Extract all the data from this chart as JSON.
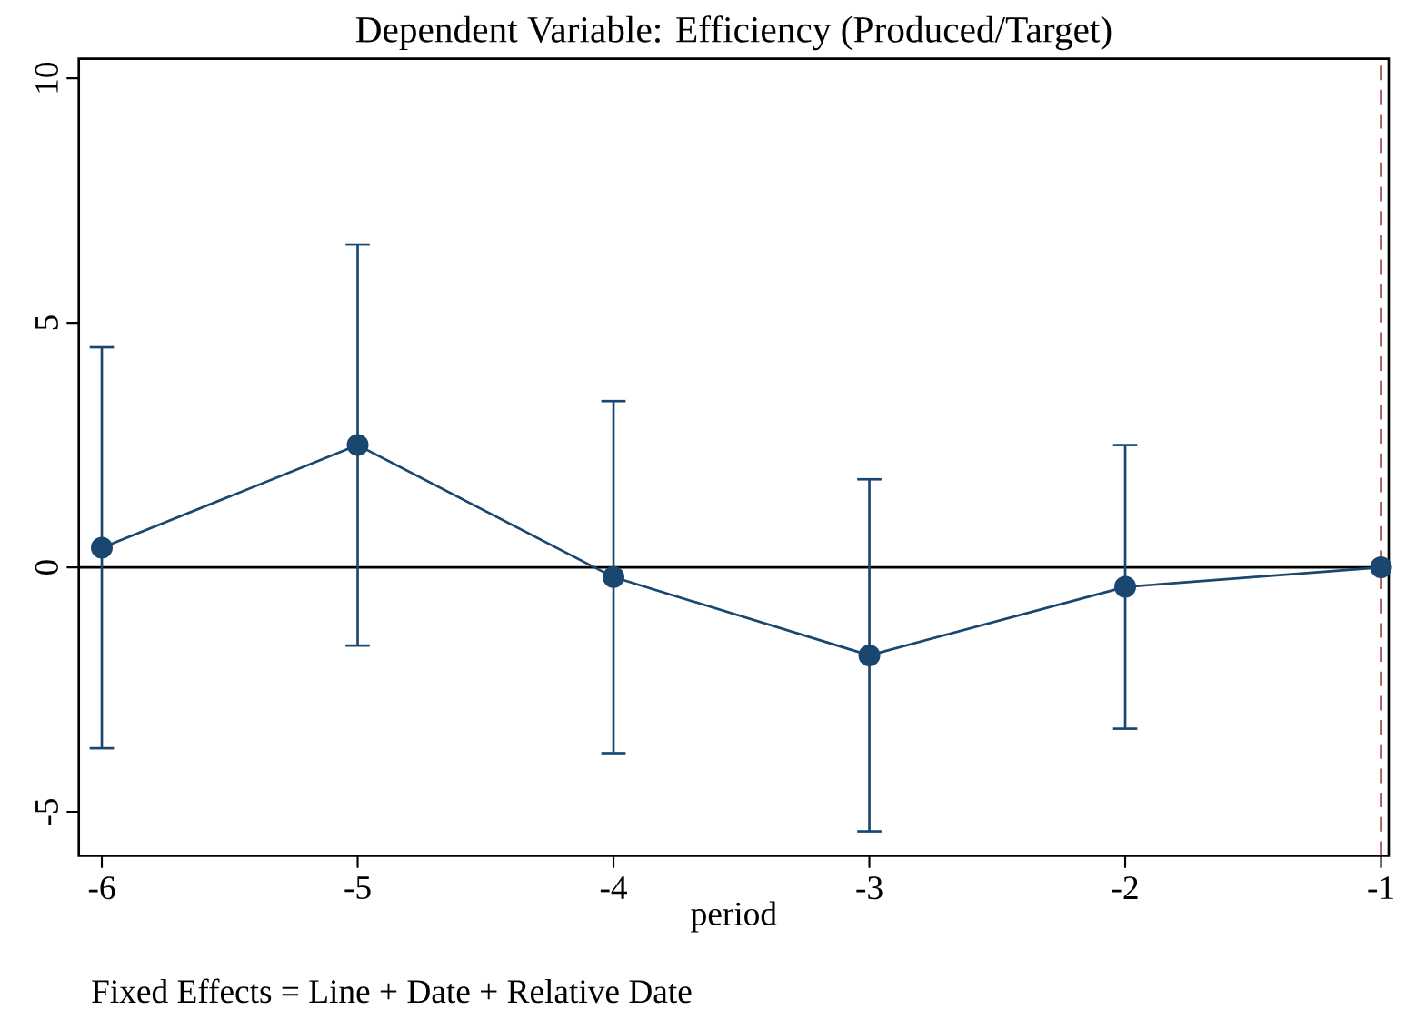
{
  "chart_data": {
    "type": "line",
    "title": "Dependent Variable: Efficiency (Produced/Target)",
    "xlabel": "period",
    "annotations": [
      "Fixed Effects = Line + Date + Relative Date"
    ],
    "x": [
      -6,
      -5,
      -4,
      -3,
      -2,
      -1
    ],
    "series": [
      {
        "color": "#1a476f",
        "values": [
          0.4,
          2.5,
          -0.2,
          -1.8,
          -0.4,
          0
        ],
        "errors": [
          4.1,
          4.1,
          3.6,
          3.6,
          2.9,
          null
        ]
      }
    ],
    "xlim": [
      -6.09,
      -0.97
    ],
    "xticks": [
      -6,
      -5,
      -4,
      -3,
      -2,
      -1
    ],
    "ylim": [
      -5.9,
      10.4
    ],
    "yticks": [
      -5,
      0,
      5,
      10
    ],
    "ref_lines": [
      {
        "axis": "y",
        "value": 0,
        "color": "#000000",
        "line_style": "solid"
      },
      {
        "axis": "x",
        "value": -1,
        "color": "#9c4a45",
        "line_style": "dashed"
      }
    ],
    "marker": "circle",
    "line_style": "solid"
  }
}
